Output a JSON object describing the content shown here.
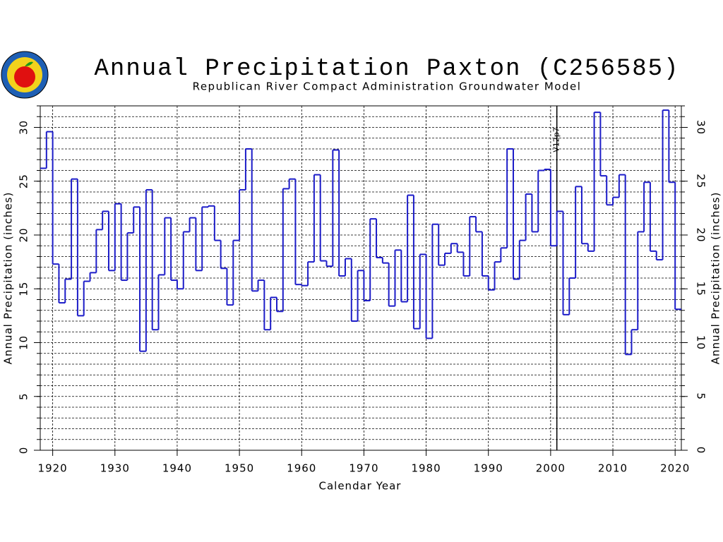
{
  "chart_data": {
    "type": "step",
    "title": "Annual Precipitation Paxton (C256585)",
    "subtitle": "Republican River Compact Administration Groundwater Model",
    "x_label": "Calendar Year",
    "y_label": "Annual Precipitation (inches)",
    "y2_label": "Annual Precipitation (inches)",
    "annotation": {
      "text": "V12p7",
      "x": 2001
    },
    "color": "#1c1cc8",
    "xlim": [
      1918,
      2021
    ],
    "xticks": [
      1920,
      1930,
      1940,
      1950,
      1960,
      1970,
      1980,
      1990,
      2000,
      2010,
      2020
    ],
    "ylim": [
      0,
      32
    ],
    "yticks": [
      0,
      5,
      10,
      15,
      20,
      25,
      30
    ],
    "y2lim": [
      0,
      32
    ],
    "y2ticks": [
      0,
      5,
      10,
      15,
      20,
      25,
      30
    ],
    "ygrid_step": 1,
    "grid": true,
    "x": [
      1918,
      1919,
      1920,
      1921,
      1922,
      1923,
      1924,
      1925,
      1926,
      1927,
      1928,
      1929,
      1930,
      1931,
      1932,
      1933,
      1934,
      1935,
      1936,
      1937,
      1938,
      1939,
      1940,
      1941,
      1942,
      1943,
      1944,
      1945,
      1946,
      1947,
      1948,
      1949,
      1950,
      1951,
      1952,
      1953,
      1954,
      1955,
      1956,
      1957,
      1958,
      1959,
      1960,
      1961,
      1962,
      1963,
      1964,
      1965,
      1966,
      1967,
      1968,
      1969,
      1970,
      1971,
      1972,
      1973,
      1974,
      1975,
      1976,
      1977,
      1978,
      1979,
      1980,
      1981,
      1982,
      1983,
      1984,
      1985,
      1986,
      1987,
      1988,
      1989,
      1990,
      1991,
      1992,
      1993,
      1994,
      1995,
      1996,
      1997,
      1998,
      1999,
      2000,
      2001,
      2002,
      2003,
      2004,
      2005,
      2006,
      2007,
      2008,
      2009,
      2010,
      2011,
      2012,
      2013,
      2014,
      2015,
      2016,
      2017,
      2018,
      2019,
      2020
    ],
    "values": [
      26.2,
      29.6,
      17.3,
      13.7,
      15.9,
      25.2,
      12.5,
      15.7,
      16.5,
      20.5,
      22.2,
      16.7,
      22.9,
      15.8,
      20.2,
      22.6,
      9.2,
      24.2,
      11.2,
      16.3,
      21.6,
      15.8,
      15.0,
      20.3,
      21.6,
      16.7,
      22.6,
      22.7,
      19.5,
      16.9,
      13.5,
      19.5,
      24.2,
      28.0,
      14.8,
      15.8,
      11.2,
      14.2,
      12.9,
      24.3,
      25.2,
      15.4,
      15.3,
      17.5,
      25.6,
      17.6,
      17.1,
      27.9,
      16.2,
      17.8,
      12.0,
      16.7,
      13.9,
      21.5,
      17.9,
      17.4,
      13.4,
      18.6,
      13.8,
      23.7,
      11.3,
      18.2,
      10.4,
      21.0,
      17.2,
      18.3,
      19.2,
      18.4,
      16.2,
      21.7,
      20.3,
      16.2,
      14.9,
      17.5,
      18.8,
      28.0,
      15.9,
      19.5,
      23.8,
      20.3,
      26.0,
      26.1,
      19.0,
      22.2,
      12.6,
      16.0,
      24.5,
      19.2,
      18.5,
      31.4,
      25.5,
      22.8,
      23.5,
      25.6,
      8.9,
      11.2,
      20.3,
      24.9,
      18.5,
      17.7,
      31.6,
      24.9,
      13.1
    ]
  }
}
